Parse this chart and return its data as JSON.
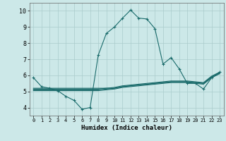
{
  "xlabel": "Humidex (Indice chaleur)",
  "ylabel": "",
  "xlim": [
    -0.5,
    23.5
  ],
  "ylim": [
    3.5,
    10.5
  ],
  "yticks": [
    4,
    5,
    6,
    7,
    8,
    9,
    10
  ],
  "xticks": [
    0,
    1,
    2,
    3,
    4,
    5,
    6,
    7,
    8,
    9,
    10,
    11,
    12,
    13,
    14,
    15,
    16,
    17,
    18,
    19,
    20,
    21,
    22,
    23
  ],
  "bg_color": "#cce8e8",
  "grid_color": "#aacccc",
  "line_color": "#1a6b6b",
  "lines": [
    [
      5.85,
      5.3,
      5.2,
      5.05,
      4.7,
      4.45,
      3.9,
      4.0,
      7.25,
      8.6,
      9.0,
      9.55,
      10.05,
      9.55,
      9.5,
      8.9,
      6.7,
      7.1,
      6.4,
      5.5,
      5.5,
      5.15,
      5.85,
      6.2
    ],
    [
      5.2,
      5.2,
      5.2,
      5.2,
      5.2,
      5.2,
      5.2,
      5.2,
      5.2,
      5.2,
      5.2,
      5.3,
      5.35,
      5.4,
      5.45,
      5.5,
      5.55,
      5.6,
      5.6,
      5.6,
      5.55,
      5.5,
      5.9,
      6.15
    ],
    [
      5.15,
      5.15,
      5.15,
      5.15,
      5.15,
      5.15,
      5.15,
      5.15,
      5.15,
      5.2,
      5.25,
      5.35,
      5.4,
      5.45,
      5.5,
      5.55,
      5.6,
      5.65,
      5.65,
      5.65,
      5.6,
      5.55,
      5.95,
      6.2
    ],
    [
      5.1,
      5.1,
      5.1,
      5.1,
      5.1,
      5.1,
      5.1,
      5.1,
      5.1,
      5.15,
      5.2,
      5.3,
      5.35,
      5.4,
      5.45,
      5.5,
      5.55,
      5.6,
      5.6,
      5.6,
      5.55,
      5.5,
      5.9,
      6.15
    ],
    [
      5.05,
      5.05,
      5.05,
      5.05,
      5.05,
      5.05,
      5.05,
      5.05,
      5.05,
      5.1,
      5.15,
      5.25,
      5.3,
      5.35,
      5.4,
      5.45,
      5.5,
      5.55,
      5.55,
      5.55,
      5.5,
      5.45,
      5.85,
      6.1
    ]
  ],
  "markers": [
    true,
    false,
    false,
    false,
    false
  ]
}
